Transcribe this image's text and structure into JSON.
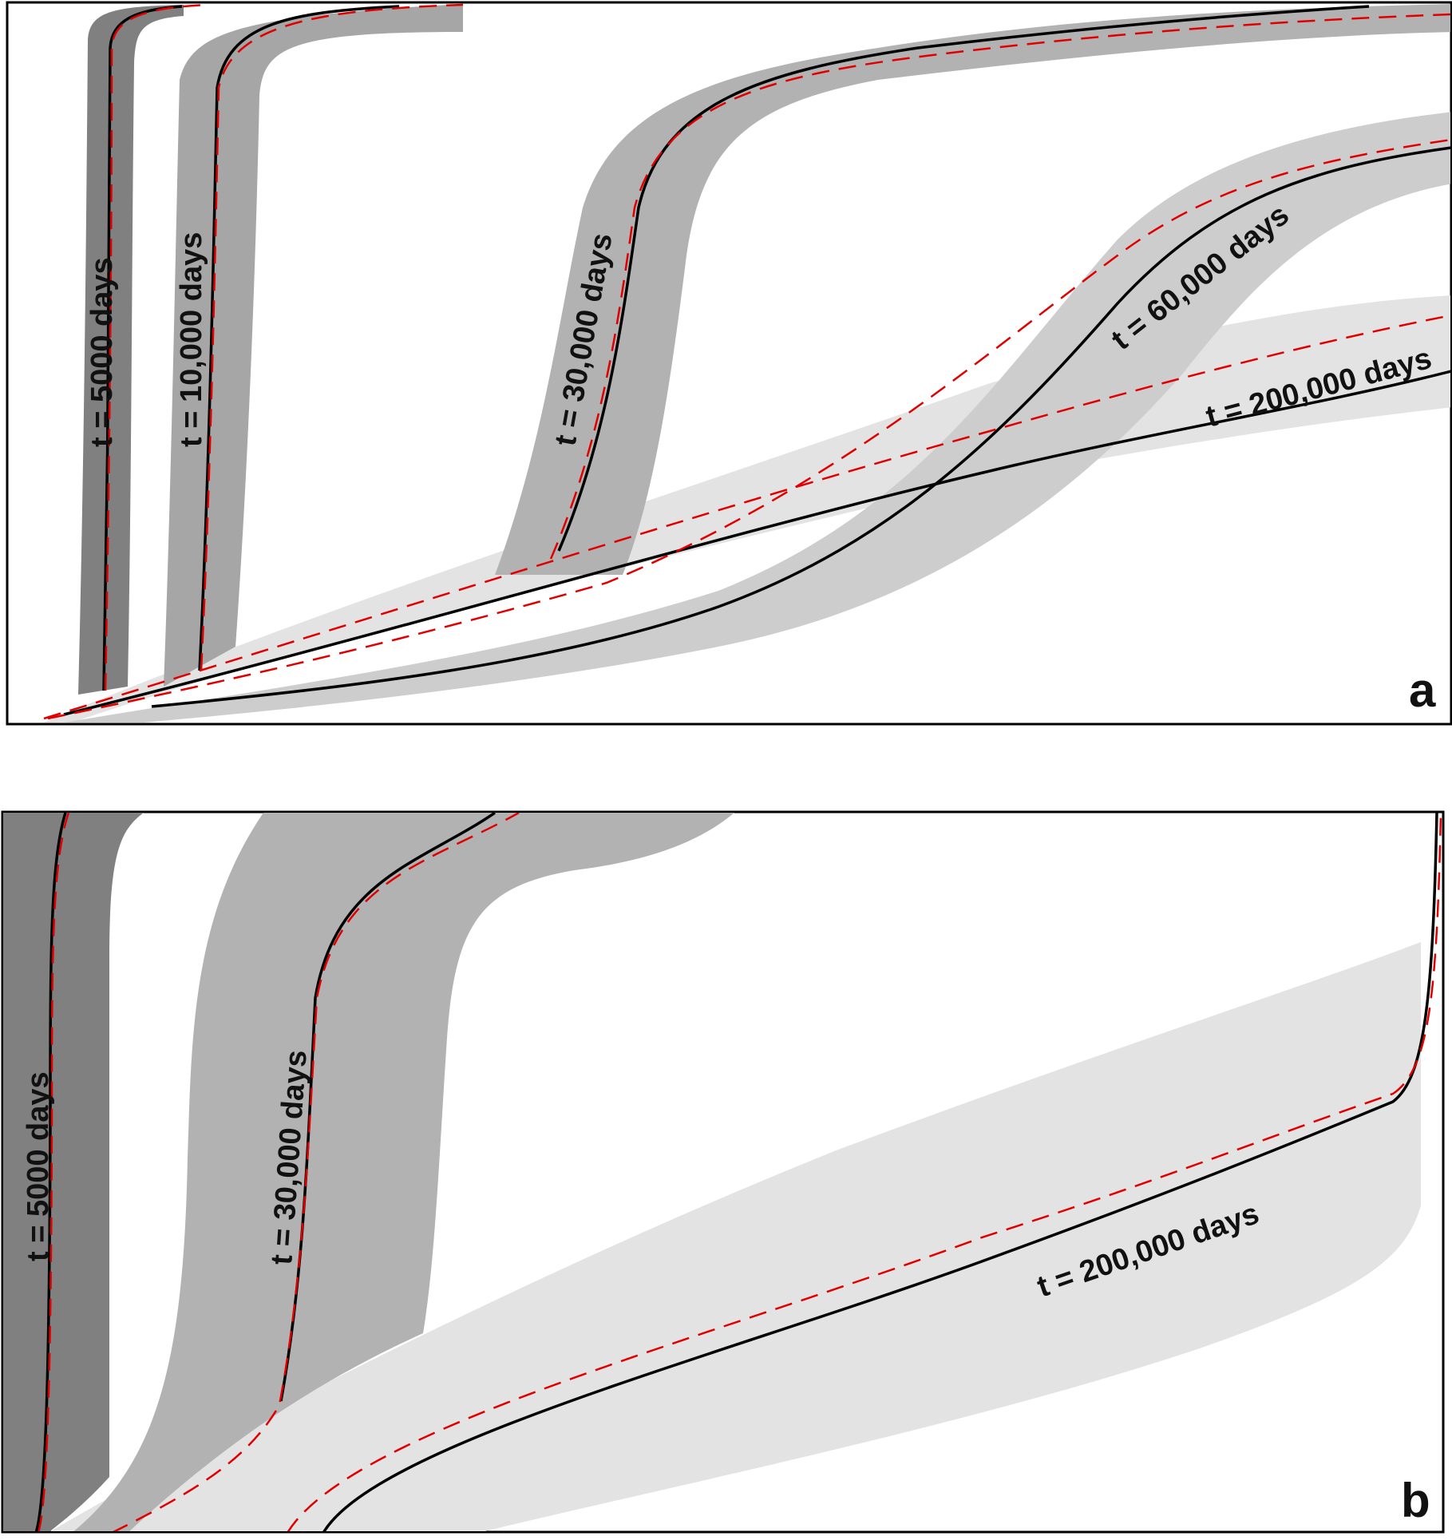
{
  "panels": [
    {
      "letter": "a",
      "curves": [
        {
          "label": "t = 5000 days"
        },
        {
          "label": "t = 10,000 days"
        },
        {
          "label": "t = 30,000 days"
        },
        {
          "label": "t = 60,000 days"
        },
        {
          "label": "t = 200,000 days"
        }
      ]
    },
    {
      "letter": "b",
      "curves": [
        {
          "label": "t = 5000 days"
        },
        {
          "label": "t = 30,000 days"
        },
        {
          "label": "t = 200,000 days"
        }
      ]
    }
  ],
  "colors": {
    "band_5000": "#808080",
    "band_10000": "#a6a6a6",
    "band_30000": "#b2b2b2",
    "band_60000": "#cdcdcd",
    "band_200000": "#e3e3e3",
    "solid_line": "#000000",
    "dashed_line": "#e00000",
    "frame": "#000000"
  }
}
